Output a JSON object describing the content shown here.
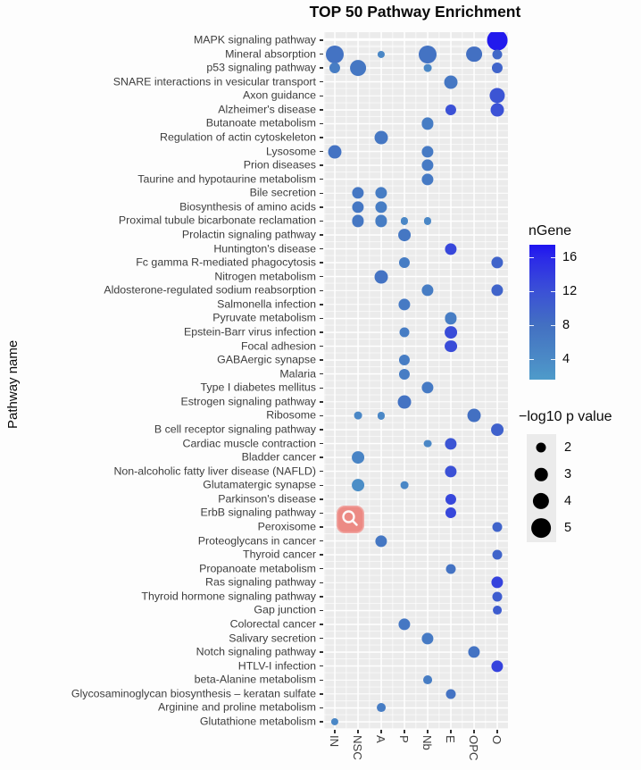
{
  "chart_data": {
    "type": "scatter",
    "title": "TOP 50 Pathway Enrichment",
    "xlabel": "",
    "ylabel": "Pathway name",
    "grid": "on",
    "x_categories": [
      "IN",
      "NSC",
      "A",
      "P",
      "Nb",
      "E",
      "OPC",
      "O"
    ],
    "y_categories": [
      "MAPK signaling pathway",
      "Mineral absorption",
      "p53 signaling pathway",
      "SNARE interactions in vesicular transport",
      "Axon guidance",
      "Alzheimer's disease",
      "Butanoate metabolism",
      "Regulation of actin cytoskeleton",
      "Lysosome",
      "Prion diseases",
      "Taurine and hypotaurine metabolism",
      "Bile secretion",
      "Biosynthesis of amino acids",
      "Proximal tubule bicarbonate reclamation",
      "Prolactin signaling pathway",
      "Huntington's disease",
      "Fc gamma R-mediated phagocytosis",
      "Nitrogen metabolism",
      "Aldosterone-regulated sodium reabsorption",
      "Salmonella infection",
      "Pyruvate metabolism",
      "Epstein-Barr virus infection",
      "Focal adhesion",
      "GABAergic synapse",
      "Malaria",
      "Type I diabetes mellitus",
      "Estrogen signaling pathway",
      "Ribosome",
      "B cell receptor signaling pathway",
      "Cardiac muscle contraction",
      "Bladder cancer",
      "Non-alcoholic fatty liver disease (NAFLD)",
      "Glutamatergic synapse",
      "Parkinson's disease",
      "ErbB signaling pathway",
      "Peroxisome",
      "Proteoglycans in cancer",
      "Thyroid cancer",
      "Propanoate metabolism",
      "Ras signaling pathway",
      "Thyroid hormone signaling pathway",
      "Gap junction",
      "Colorectal cancer",
      "Salivary secretion",
      "Notch signaling pathway",
      "HTLV-I infection",
      "beta-Alanine metabolism",
      "Glycosaminoglycan biosynthesis – keratan sulfate",
      "Arginine and proline metabolism",
      "Glutathione metabolism"
    ],
    "points": [
      {
        "pathway": "MAPK signaling pathway",
        "cell": "O",
        "neg_log10_p": 5.3,
        "ngene": 17
      },
      {
        "pathway": "Mineral absorption",
        "cell": "IN",
        "neg_log10_p": 4.5,
        "ngene": 7.5
      },
      {
        "pathway": "Mineral absorption",
        "cell": "A",
        "neg_log10_p": 1.2,
        "ngene": 4.5
      },
      {
        "pathway": "Mineral absorption",
        "cell": "Nb",
        "neg_log10_p": 4.5,
        "ngene": 7.5
      },
      {
        "pathway": "Mineral absorption",
        "cell": "OPC",
        "neg_log10_p": 3.9,
        "ngene": 8
      },
      {
        "pathway": "Mineral absorption",
        "cell": "O",
        "neg_log10_p": 2.0,
        "ngene": 9
      },
      {
        "pathway": "p53 signaling pathway",
        "cell": "IN",
        "neg_log10_p": 2.3,
        "ngene": 6
      },
      {
        "pathway": "p53 signaling pathway",
        "cell": "NSC",
        "neg_log10_p": 3.9,
        "ngene": 7
      },
      {
        "pathway": "p53 signaling pathway",
        "cell": "Nb",
        "neg_log10_p": 1.4,
        "ngene": 4.5
      },
      {
        "pathway": "p53 signaling pathway",
        "cell": "O",
        "neg_log10_p": 2.3,
        "ngene": 9.5
      },
      {
        "pathway": "SNARE interactions in vesicular transport",
        "cell": "E",
        "neg_log10_p": 3.1,
        "ngene": 7
      },
      {
        "pathway": "Axon guidance",
        "cell": "O",
        "neg_log10_p": 3.7,
        "ngene": 11.5
      },
      {
        "pathway": "Alzheimer's disease",
        "cell": "E",
        "neg_log10_p": 2.3,
        "ngene": 12
      },
      {
        "pathway": "Alzheimer's disease",
        "cell": "O",
        "neg_log10_p": 3.1,
        "ngene": 12
      },
      {
        "pathway": "Butanoate metabolism",
        "cell": "Nb",
        "neg_log10_p": 2.6,
        "ngene": 6
      },
      {
        "pathway": "Regulation of actin cytoskeleton",
        "cell": "A",
        "neg_log10_p": 3.1,
        "ngene": 7
      },
      {
        "pathway": "Lysosome",
        "cell": "IN",
        "neg_log10_p": 3.1,
        "ngene": 7.5
      },
      {
        "pathway": "Lysosome",
        "cell": "Nb",
        "neg_log10_p": 2.6,
        "ngene": 6.5
      },
      {
        "pathway": "Prion diseases",
        "cell": "Nb",
        "neg_log10_p": 2.6,
        "ngene": 6.5
      },
      {
        "pathway": "Taurine and hypotaurine metabolism",
        "cell": "Nb",
        "neg_log10_p": 2.6,
        "ngene": 6.5
      },
      {
        "pathway": "Bile secretion",
        "cell": "NSC",
        "neg_log10_p": 2.6,
        "ngene": 7
      },
      {
        "pathway": "Bile secretion",
        "cell": "A",
        "neg_log10_p": 2.6,
        "ngene": 6
      },
      {
        "pathway": "Biosynthesis of amino acids",
        "cell": "NSC",
        "neg_log10_p": 2.6,
        "ngene": 7
      },
      {
        "pathway": "Biosynthesis of amino acids",
        "cell": "A",
        "neg_log10_p": 2.6,
        "ngene": 6
      },
      {
        "pathway": "Proximal tubule bicarbonate reclamation",
        "cell": "NSC",
        "neg_log10_p": 2.6,
        "ngene": 7
      },
      {
        "pathway": "Proximal tubule bicarbonate reclamation",
        "cell": "A",
        "neg_log10_p": 2.6,
        "ngene": 6
      },
      {
        "pathway": "Proximal tubule bicarbonate reclamation",
        "cell": "P",
        "neg_log10_p": 1.2,
        "ngene": 4.5
      },
      {
        "pathway": "Proximal tubule bicarbonate reclamation",
        "cell": "Nb",
        "neg_log10_p": 1.2,
        "ngene": 4.5
      },
      {
        "pathway": "Prolactin signaling pathway",
        "cell": "P",
        "neg_log10_p": 2.8,
        "ngene": 7
      },
      {
        "pathway": "Huntington's disease",
        "cell": "E",
        "neg_log10_p": 2.6,
        "ngene": 13
      },
      {
        "pathway": "Fc gamma R-mediated phagocytosis",
        "cell": "P",
        "neg_log10_p": 2.3,
        "ngene": 6
      },
      {
        "pathway": "Fc gamma R-mediated phagocytosis",
        "cell": "O",
        "neg_log10_p": 2.6,
        "ngene": 9.5
      },
      {
        "pathway": "Nitrogen metabolism",
        "cell": "A",
        "neg_log10_p": 3.1,
        "ngene": 7.5
      },
      {
        "pathway": "Aldosterone-regulated sodium reabsorption",
        "cell": "Nb",
        "neg_log10_p": 2.6,
        "ngene": 6
      },
      {
        "pathway": "Aldosterone-regulated sodium reabsorption",
        "cell": "O",
        "neg_log10_p": 2.6,
        "ngene": 9.5
      },
      {
        "pathway": "Salmonella infection",
        "cell": "P",
        "neg_log10_p": 2.6,
        "ngene": 6.5
      },
      {
        "pathway": "Pyruvate metabolism",
        "cell": "E",
        "neg_log10_p": 2.6,
        "ngene": 6
      },
      {
        "pathway": "Epstein-Barr virus infection",
        "cell": "P",
        "neg_log10_p": 2.0,
        "ngene": 6
      },
      {
        "pathway": "Epstein-Barr virus infection",
        "cell": "E",
        "neg_log10_p": 2.8,
        "ngene": 12.5
      },
      {
        "pathway": "Focal adhesion",
        "cell": "E",
        "neg_log10_p": 2.8,
        "ngene": 12.5
      },
      {
        "pathway": "GABAergic synapse",
        "cell": "P",
        "neg_log10_p": 2.3,
        "ngene": 6
      },
      {
        "pathway": "Malaria",
        "cell": "P",
        "neg_log10_p": 2.3,
        "ngene": 6
      },
      {
        "pathway": "Type I diabetes mellitus",
        "cell": "Nb",
        "neg_log10_p": 2.6,
        "ngene": 6.5
      },
      {
        "pathway": "Estrogen signaling pathway",
        "cell": "P",
        "neg_log10_p": 3.1,
        "ngene": 7.5
      },
      {
        "pathway": "Ribosome",
        "cell": "NSC",
        "neg_log10_p": 1.4,
        "ngene": 4.5
      },
      {
        "pathway": "Ribosome",
        "cell": "A",
        "neg_log10_p": 1.2,
        "ngene": 4.5
      },
      {
        "pathway": "Ribosome",
        "cell": "OPC",
        "neg_log10_p": 3.1,
        "ngene": 8
      },
      {
        "pathway": "B cell receptor signaling pathway",
        "cell": "O",
        "neg_log10_p": 2.8,
        "ngene": 10
      },
      {
        "pathway": "Cardiac muscle contraction",
        "cell": "Nb",
        "neg_log10_p": 1.4,
        "ngene": 4.5
      },
      {
        "pathway": "Cardiac muscle contraction",
        "cell": "E",
        "neg_log10_p": 2.6,
        "ngene": 11.5
      },
      {
        "pathway": "Bladder cancer",
        "cell": "NSC",
        "neg_log10_p": 2.8,
        "ngene": 5
      },
      {
        "pathway": "Non-alcoholic fatty liver disease (NAFLD)",
        "cell": "E",
        "neg_log10_p": 2.6,
        "ngene": 12
      },
      {
        "pathway": "Glutamatergic synapse",
        "cell": "NSC",
        "neg_log10_p": 2.8,
        "ngene": 3.5
      },
      {
        "pathway": "Glutamatergic synapse",
        "cell": "P",
        "neg_log10_p": 1.4,
        "ngene": 4.5
      },
      {
        "pathway": "Parkinson's disease",
        "cell": "E",
        "neg_log10_p": 2.3,
        "ngene": 13
      },
      {
        "pathway": "ErbB signaling pathway",
        "cell": "E",
        "neg_log10_p": 2.3,
        "ngene": 13
      },
      {
        "pathway": "Peroxisome",
        "cell": "O",
        "neg_log10_p": 2.0,
        "ngene": 9.5
      },
      {
        "pathway": "Proteoglycans in cancer",
        "cell": "A",
        "neg_log10_p": 2.6,
        "ngene": 7
      },
      {
        "pathway": "Thyroid cancer",
        "cell": "O",
        "neg_log10_p": 2.0,
        "ngene": 9.5
      },
      {
        "pathway": "Propanoate metabolism",
        "cell": "E",
        "neg_log10_p": 2.0,
        "ngene": 7.5
      },
      {
        "pathway": "Ras signaling pathway",
        "cell": "O",
        "neg_log10_p": 2.6,
        "ngene": 13.5
      },
      {
        "pathway": "Thyroid hormone signaling pathway",
        "cell": "O",
        "neg_log10_p": 2.0,
        "ngene": 10.5
      },
      {
        "pathway": "Gap junction",
        "cell": "O",
        "neg_log10_p": 1.7,
        "ngene": 10.5
      },
      {
        "pathway": "Colorectal cancer",
        "cell": "P",
        "neg_log10_p": 2.6,
        "ngene": 7
      },
      {
        "pathway": "Salivary secretion",
        "cell": "Nb",
        "neg_log10_p": 2.6,
        "ngene": 6.5
      },
      {
        "pathway": "Notch signaling pathway",
        "cell": "OPC",
        "neg_log10_p": 2.6,
        "ngene": 7.5
      },
      {
        "pathway": "HTLV-I infection",
        "cell": "O",
        "neg_log10_p": 2.6,
        "ngene": 13.5
      },
      {
        "pathway": "beta-Alanine metabolism",
        "cell": "Nb",
        "neg_log10_p": 1.7,
        "ngene": 6
      },
      {
        "pathway": "Glycosaminoglycan biosynthesis – keratan sulfate",
        "cell": "E",
        "neg_log10_p": 2.0,
        "ngene": 7.5
      },
      {
        "pathway": "Arginine and proline metabolism",
        "cell": "A",
        "neg_log10_p": 1.7,
        "ngene": 6
      },
      {
        "pathway": "Glutathione metabolism",
        "cell": "IN",
        "neg_log10_p": 1.2,
        "ngene": 4.5
      }
    ],
    "legends": {
      "color": {
        "title": "nGene",
        "tick_values": [
          16,
          12,
          8,
          4
        ],
        "range": [
          1.6,
          17.5
        ],
        "stops": [
          {
            "v": 1.6,
            "c": "#4e9bca"
          },
          {
            "v": 4,
            "c": "#4b8ac6"
          },
          {
            "v": 8,
            "c": "#4370c2"
          },
          {
            "v": 12,
            "c": "#3b51d6"
          },
          {
            "v": 16,
            "c": "#2b29e8"
          },
          {
            "v": 17.5,
            "c": "#1e13f0"
          }
        ],
        "position": "right"
      },
      "size": {
        "title": "−log10 p value",
        "entries": [
          2,
          3,
          4,
          5
        ],
        "dot_color": "#000000",
        "position": "right"
      }
    },
    "panel_background": "#ebebeb",
    "gridline_color": "#ffffff"
  },
  "overlay": {
    "magnifier_badge_color": "#ec8a84",
    "magnifier_glyph": "magnifying-glass"
  }
}
